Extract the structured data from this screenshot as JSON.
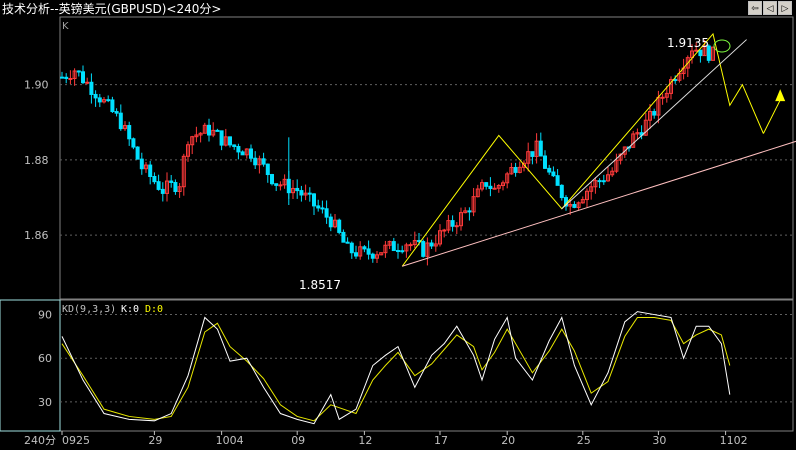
{
  "window": {
    "title": "技术分析--英镑美元(GBPUSD)<240分>",
    "nav_buttons": [
      "back",
      "prev",
      "next"
    ]
  },
  "main_panel": {
    "label": "K",
    "y_ticks": [
      "1.90",
      "1.88",
      "1.86"
    ],
    "annotations": {
      "high": "1.9135",
      "low": "1.8517"
    }
  },
  "indicator_panel": {
    "label": "KD(9,3,3)",
    "k_text": "K:0",
    "d_text": "D:0",
    "y_ticks": [
      "90",
      "60",
      "30"
    ]
  },
  "x_axis": {
    "period": "240分",
    "ticks": [
      "0925",
      "29",
      "1004",
      "09",
      "12",
      "17",
      "20",
      "25",
      "30",
      "1102"
    ]
  },
  "colors": {
    "up": "#ff3a3a",
    "down": "#00e0ff",
    "trend": "#ffff00",
    "support": "#ffc0c0",
    "k_line": "#ffffff",
    "d_line": "#e8e800",
    "grid": "#606060"
  },
  "chart_data": {
    "type": "candlestick",
    "price_anchors": [
      [
        0,
        1.902
      ],
      [
        3,
        1.904
      ],
      [
        8,
        1.898
      ],
      [
        14,
        1.89
      ],
      [
        19,
        1.878
      ],
      [
        24,
        1.872
      ],
      [
        28,
        1.874
      ],
      [
        30,
        1.886
      ],
      [
        35,
        1.888
      ],
      [
        40,
        1.884
      ],
      [
        45,
        1.882
      ],
      [
        51,
        1.874
      ],
      [
        56,
        1.872
      ],
      [
        60,
        1.868
      ],
      [
        64,
        1.864
      ],
      [
        68,
        1.856
      ],
      [
        72,
        1.855
      ],
      [
        76,
        1.856
      ],
      [
        82,
        1.858
      ],
      [
        86,
        1.856
      ],
      [
        90,
        1.86
      ],
      [
        96,
        1.866
      ],
      [
        101,
        1.874
      ],
      [
        103,
        1.872
      ],
      [
        109,
        1.88
      ],
      [
        113,
        1.883
      ],
      [
        117,
        1.874
      ],
      [
        121,
        1.868
      ],
      [
        126,
        1.873
      ],
      [
        131,
        1.877
      ],
      [
        136,
        1.886
      ],
      [
        140,
        1.891
      ],
      [
        145,
        1.901
      ],
      [
        150,
        1.91
      ],
      [
        155,
        1.908
      ]
    ],
    "kd": {
      "k": [
        [
          0,
          75
        ],
        [
          5,
          45
        ],
        [
          10,
          22
        ],
        [
          16,
          18
        ],
        [
          22,
          17
        ],
        [
          26,
          22
        ],
        [
          30,
          48
        ],
        [
          34,
          88
        ],
        [
          37,
          80
        ],
        [
          40,
          58
        ],
        [
          44,
          60
        ],
        [
          48,
          40
        ],
        [
          52,
          22
        ],
        [
          56,
          18
        ],
        [
          60,
          15
        ],
        [
          64,
          35
        ],
        [
          66,
          18
        ],
        [
          70,
          25
        ],
        [
          74,
          55
        ],
        [
          77,
          62
        ],
        [
          80,
          68
        ],
        [
          84,
          40
        ],
        [
          88,
          62
        ],
        [
          91,
          70
        ],
        [
          94,
          82
        ],
        [
          98,
          62
        ],
        [
          100,
          45
        ],
        [
          103,
          73
        ],
        [
          106,
          88
        ],
        [
          108,
          60
        ],
        [
          112,
          45
        ],
        [
          116,
          72
        ],
        [
          119,
          88
        ],
        [
          122,
          55
        ],
        [
          126,
          28
        ],
        [
          130,
          50
        ],
        [
          134,
          85
        ],
        [
          137,
          92
        ],
        [
          141,
          90
        ],
        [
          145,
          88
        ],
        [
          148,
          60
        ],
        [
          151,
          82
        ],
        [
          154,
          82
        ],
        [
          157,
          70
        ],
        [
          159,
          35
        ]
      ],
      "d": [
        [
          0,
          70
        ],
        [
          5,
          48
        ],
        [
          10,
          25
        ],
        [
          16,
          20
        ],
        [
          22,
          18
        ],
        [
          26,
          20
        ],
        [
          30,
          40
        ],
        [
          34,
          78
        ],
        [
          37,
          84
        ],
        [
          40,
          68
        ],
        [
          44,
          58
        ],
        [
          48,
          46
        ],
        [
          52,
          28
        ],
        [
          56,
          20
        ],
        [
          60,
          17
        ],
        [
          64,
          28
        ],
        [
          66,
          26
        ],
        [
          70,
          22
        ],
        [
          74,
          45
        ],
        [
          77,
          55
        ],
        [
          80,
          64
        ],
        [
          84,
          48
        ],
        [
          88,
          56
        ],
        [
          91,
          66
        ],
        [
          94,
          76
        ],
        [
          98,
          68
        ],
        [
          100,
          52
        ],
        [
          103,
          64
        ],
        [
          106,
          80
        ],
        [
          108,
          70
        ],
        [
          112,
          50
        ],
        [
          116,
          65
        ],
        [
          119,
          80
        ],
        [
          122,
          65
        ],
        [
          126,
          36
        ],
        [
          130,
          44
        ],
        [
          134,
          75
        ],
        [
          137,
          88
        ],
        [
          141,
          88
        ],
        [
          145,
          86
        ],
        [
          148,
          70
        ],
        [
          151,
          76
        ],
        [
          154,
          80
        ],
        [
          157,
          76
        ],
        [
          159,
          55
        ]
      ]
    },
    "trendlines": [
      {
        "kind": "zigzag",
        "points": [
          [
            81,
            1.8517
          ],
          [
            104,
            1.8865
          ],
          [
            119,
            1.867
          ],
          [
            155,
            1.9135
          ],
          [
            159,
            1.8945
          ],
          [
            162,
            1.9
          ],
          [
            167,
            1.887
          ]
        ]
      },
      {
        "kind": "arrow",
        "from": [
          167,
          1.887
        ],
        "to": [
          171,
          1.8975
        ]
      },
      {
        "kind": "support",
        "from": [
          81,
          1.8517
        ],
        "to": [
          182,
          1.8875
        ]
      },
      {
        "kind": "channel",
        "from": [
          119,
          1.867
        ],
        "to": [
          163,
          1.912
        ]
      }
    ],
    "ylim": [
      1.843,
      1.918
    ],
    "kd_ylim": [
      10,
      100
    ]
  }
}
